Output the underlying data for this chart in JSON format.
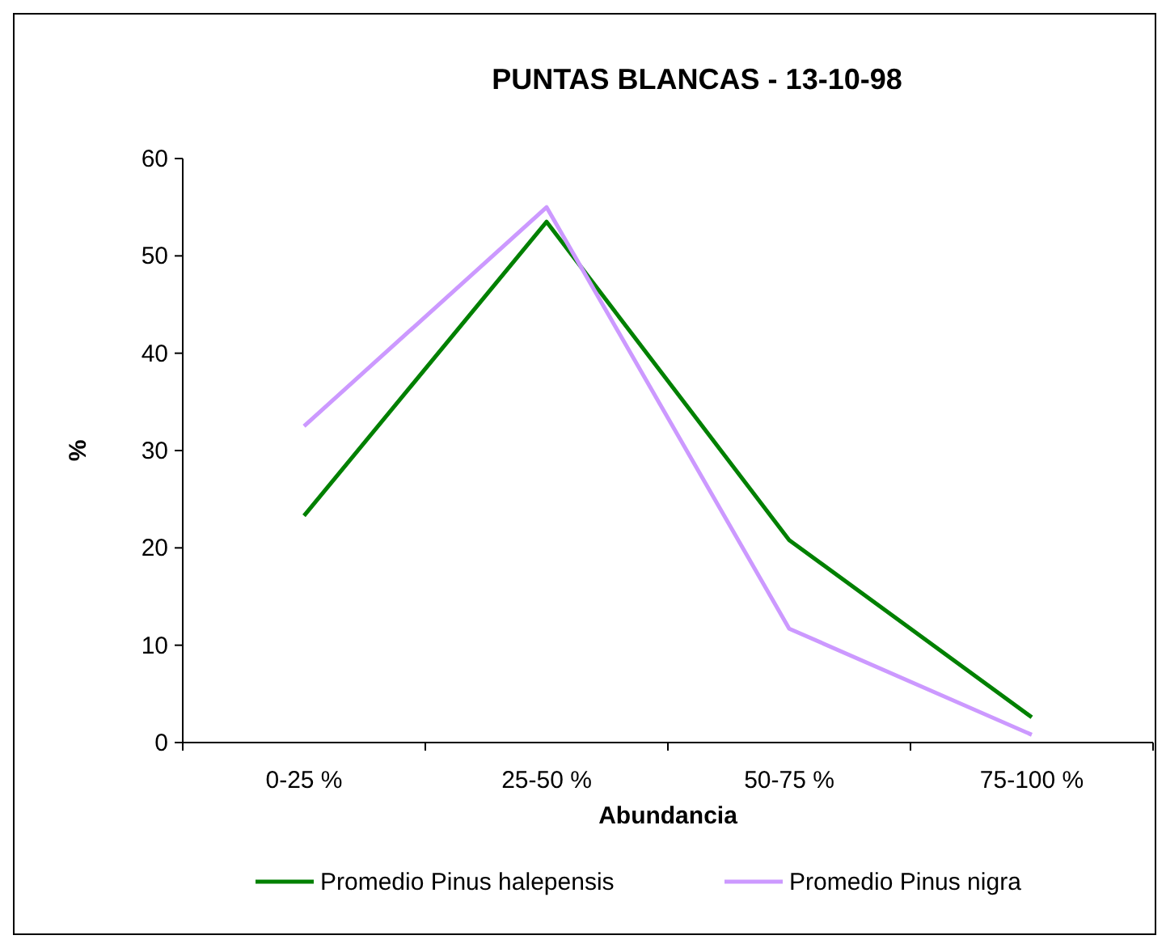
{
  "chart_data": {
    "type": "line",
    "title": "PUNTAS BLANCAS - 13-10-98",
    "xlabel": "Abundancia",
    "ylabel": "%",
    "categories": [
      "0-25 %",
      "25-50 %",
      "50-75 %",
      "75-100 %"
    ],
    "series": [
      {
        "name": "Promedio Pinus halepensis",
        "color": "#008000",
        "values": [
          23.3,
          53.5,
          20.8,
          2.6
        ]
      },
      {
        "name": "Promedio Pinus nigra",
        "color": "#cc99ff",
        "values": [
          32.5,
          55,
          11.7,
          0.8
        ]
      }
    ],
    "ylim": [
      0,
      60
    ],
    "yticks": [
      0,
      10,
      20,
      30,
      40,
      50,
      60
    ],
    "grid": false,
    "legend": "bottom",
    "marker": "none",
    "line_style": "solid"
  }
}
